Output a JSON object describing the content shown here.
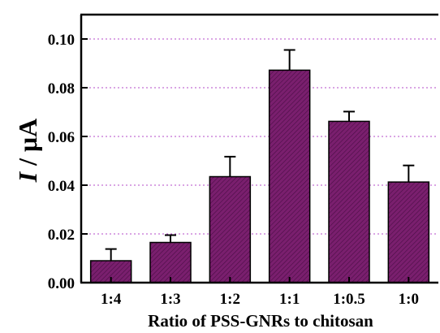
{
  "chart_data": {
    "type": "bar",
    "title": "",
    "xlabel": "Ratio of PSS-GNRs to chitosan",
    "ylabel_italic": "I",
    "ylabel_rest": " / μA",
    "categories": [
      "1:4",
      "1:3",
      "1:2",
      "1:1",
      "1:0.5",
      "1:0"
    ],
    "values": [
      0.009,
      0.0165,
      0.0435,
      0.0872,
      0.0662,
      0.0413
    ],
    "errors": [
      0.0048,
      0.003,
      0.0082,
      0.0083,
      0.004,
      0.0068
    ],
    "ylim": [
      0,
      0.11
    ],
    "yticks": [
      "0.00",
      "0.02",
      "0.04",
      "0.06",
      "0.08",
      "0.10"
    ],
    "grid": "horizontal dotted",
    "legend": "none",
    "colors": {
      "bar_fill": "#7a1f6e",
      "bar_stroke": "#000000",
      "grid": "#b44bc8",
      "hatch": "#4a0d44"
    }
  }
}
